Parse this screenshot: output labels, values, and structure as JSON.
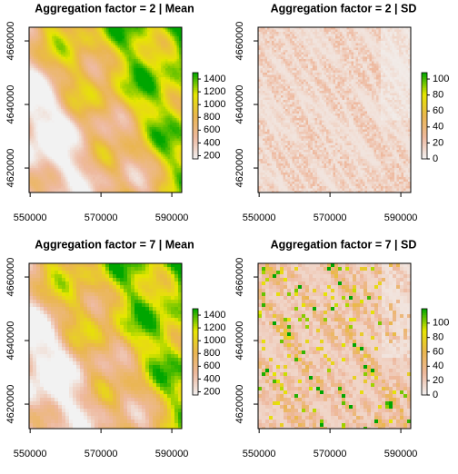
{
  "chart_data": [
    {
      "type": "raster",
      "title": "Aggregation factor = 2 | Mean",
      "statistic": "mean",
      "aggregation_factor": 2,
      "xlim": [
        549700,
        592800
      ],
      "ylim": [
        4612300,
        4664300
      ],
      "xticks": [
        550000,
        570000,
        590000
      ],
      "yticks": [
        4620000,
        4640000,
        4660000
      ],
      "colorbar": {
        "lim": [
          150,
          1500
        ],
        "ticks": [
          200,
          400,
          600,
          800,
          1000,
          1200,
          1400
        ],
        "colors": [
          "#F2F2F2",
          "#EEB99F",
          "#EAB64E",
          "#E6E600",
          "#00A600"
        ]
      }
    },
    {
      "type": "raster",
      "title": "Aggregation factor = 2 | SD",
      "statistic": "sd",
      "aggregation_factor": 2,
      "xlim": [
        549700,
        592800
      ],
      "ylim": [
        4612300,
        4664300
      ],
      "xticks": [
        550000,
        570000,
        590000
      ],
      "yticks": [
        4620000,
        4640000,
        4660000
      ],
      "colorbar": {
        "lim": [
          0,
          108
        ],
        "ticks": [
          0,
          20,
          40,
          60,
          80,
          100
        ],
        "colors": [
          "#F2F2F2",
          "#EEB99F",
          "#EAB64E",
          "#E6E600",
          "#00A600"
        ]
      }
    },
    {
      "type": "raster",
      "title": "Aggregation factor = 7 | Mean",
      "statistic": "mean",
      "aggregation_factor": 7,
      "xlim": [
        549700,
        592800
      ],
      "ylim": [
        4612300,
        4664300
      ],
      "xticks": [
        550000,
        570000,
        590000
      ],
      "yticks": [
        4620000,
        4640000,
        4660000
      ],
      "colorbar": {
        "lim": [
          150,
          1500
        ],
        "ticks": [
          200,
          400,
          600,
          800,
          1000,
          1200,
          1400
        ],
        "colors": [
          "#F2F2F2",
          "#EEB99F",
          "#EAB64E",
          "#E6E600",
          "#00A600"
        ]
      }
    },
    {
      "type": "raster",
      "title": "Aggregation factor = 7 | SD",
      "statistic": "sd",
      "aggregation_factor": 7,
      "xlim": [
        549700,
        592800
      ],
      "ylim": [
        4612300,
        4664300
      ],
      "xticks": [
        550000,
        570000,
        590000
      ],
      "yticks": [
        4620000,
        4640000,
        4660000
      ],
      "colorbar": {
        "lim": [
          0,
          120
        ],
        "ticks": [
          0,
          20,
          40,
          60,
          80,
          100
        ],
        "colors": [
          "#F2F2F2",
          "#EEB99F",
          "#EAB64E",
          "#E6E600",
          "#00A600"
        ]
      }
    }
  ]
}
